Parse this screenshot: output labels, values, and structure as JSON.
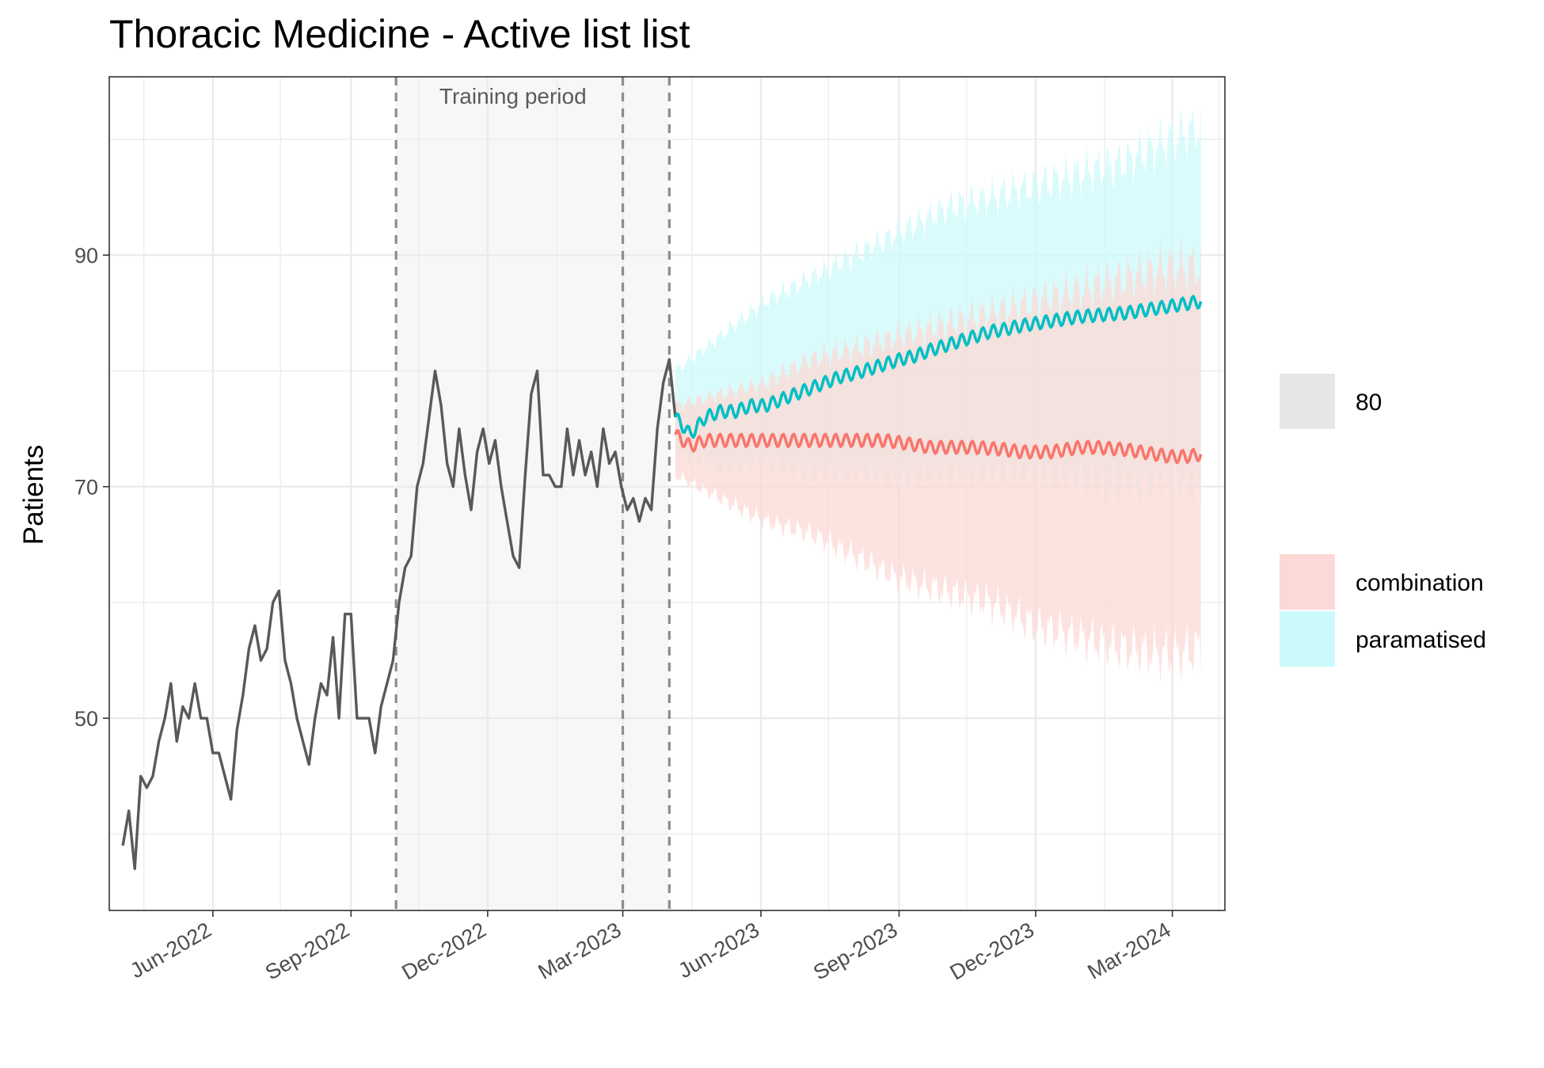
{
  "chart_data": {
    "type": "line",
    "title": "Thoracic Medicine - Active list list",
    "ylabel": "Patients",
    "xlabel": "",
    "xlim": [
      "2022-03-24",
      "2024-04-05"
    ],
    "ylim": [
      33.4,
      105.4
    ],
    "y_ticks": [
      50,
      70,
      90
    ],
    "x_ticks": [
      {
        "date": "2022-06-01",
        "label": "Jun-2022"
      },
      {
        "date": "2022-09-01",
        "label": "Sep-2022"
      },
      {
        "date": "2022-12-01",
        "label": "Dec-2022"
      },
      {
        "date": "2023-03-01",
        "label": "Mar-2023"
      },
      {
        "date": "2023-06-01",
        "label": "Jun-2023"
      },
      {
        "date": "2023-09-01",
        "label": "Sep-2023"
      },
      {
        "date": "2023-12-01",
        "label": "Dec-2023"
      },
      {
        "date": "2024-03-01",
        "label": "Mar-2024"
      }
    ],
    "grid": true,
    "legend_position": "right",
    "training_period": {
      "label": "Training period",
      "start": "2022-10-01",
      "end": "2023-04-01"
    },
    "vlines": [
      "2022-10-01",
      "2023-03-01",
      "2023-04-01"
    ],
    "legend": {
      "interval_title": "80",
      "entries": [
        "combination",
        "paramatised"
      ]
    },
    "colors": {
      "observed": "#595959",
      "combination": "#F8766D",
      "combination_band": "#FCD9D6",
      "paramatised": "#00BFC4",
      "paramatised_band": "#CCFAFB",
      "band_overlap": "#D9F2F1",
      "training_shade": "#F7F7F7",
      "vline": "#8C8C8C",
      "grid": "#EBEBEB",
      "legend_key_80": "#E6E6E6"
    },
    "series": [
      {
        "name": "observed",
        "x": [
          "2022-04-02",
          "2022-04-06",
          "2022-04-10",
          "2022-04-14",
          "2022-04-18",
          "2022-04-22",
          "2022-04-26",
          "2022-04-30",
          "2022-05-04",
          "2022-05-08",
          "2022-05-12",
          "2022-05-16",
          "2022-05-20",
          "2022-05-24",
          "2022-05-28",
          "2022-06-01",
          "2022-06-05",
          "2022-06-09",
          "2022-06-13",
          "2022-06-17",
          "2022-06-21",
          "2022-06-25",
          "2022-06-29",
          "2022-07-03",
          "2022-07-07",
          "2022-07-11",
          "2022-07-15",
          "2022-07-19",
          "2022-07-23",
          "2022-07-27",
          "2022-07-31",
          "2022-08-04",
          "2022-08-08",
          "2022-08-12",
          "2022-08-16",
          "2022-08-20",
          "2022-08-24",
          "2022-08-28",
          "2022-09-01",
          "2022-09-05",
          "2022-09-09",
          "2022-09-13",
          "2022-09-17",
          "2022-09-21",
          "2022-09-25",
          "2022-09-29",
          "2022-10-03",
          "2022-10-07",
          "2022-10-11",
          "2022-10-15",
          "2022-10-19",
          "2022-10-23",
          "2022-10-27",
          "2022-10-31",
          "2022-11-04",
          "2022-11-08",
          "2022-11-12",
          "2022-11-16",
          "2022-11-20",
          "2022-11-24",
          "2022-11-28",
          "2022-12-02",
          "2022-12-06",
          "2022-12-10",
          "2022-12-14",
          "2022-12-18",
          "2022-12-22",
          "2022-12-26",
          "2022-12-30",
          "2023-01-03",
          "2023-01-07",
          "2023-01-11",
          "2023-01-15",
          "2023-01-19",
          "2023-01-23",
          "2023-01-27",
          "2023-01-31",
          "2023-02-04",
          "2023-02-08",
          "2023-02-12",
          "2023-02-16",
          "2023-02-20",
          "2023-02-24",
          "2023-02-28",
          "2023-03-04",
          "2023-03-08",
          "2023-03-12",
          "2023-03-16",
          "2023-03-20",
          "2023-03-24",
          "2023-03-28",
          "2023-04-01",
          "2023-04-05"
        ],
        "y": [
          39,
          42,
          37,
          45,
          44,
          45,
          48,
          50,
          53,
          48,
          51,
          50,
          53,
          50,
          50,
          47,
          47,
          45,
          43,
          49,
          52,
          56,
          58,
          55,
          56,
          60,
          61,
          55,
          53,
          50,
          48,
          46,
          50,
          53,
          52,
          57,
          50,
          59,
          59,
          50,
          50,
          50,
          47,
          51,
          53,
          55,
          60,
          63,
          64,
          70,
          72,
          76,
          80,
          77,
          72,
          70,
          75,
          71,
          68,
          73,
          75,
          72,
          74,
          70,
          67,
          64,
          63,
          71,
          78,
          80,
          71,
          71,
          70,
          70,
          75,
          71,
          74,
          71,
          73,
          70,
          75,
          72,
          73,
          70,
          68,
          69,
          67,
          69,
          68,
          75,
          79,
          81,
          76
        ]
      },
      {
        "name": "paramatised",
        "x": [
          "2023-04-05",
          "2023-04-15",
          "2023-04-25",
          "2023-05-05",
          "2023-05-15",
          "2023-05-25",
          "2023-06-04",
          "2023-06-14",
          "2023-06-24",
          "2023-07-04",
          "2023-07-14",
          "2023-07-24",
          "2023-08-03",
          "2023-08-13",
          "2023-08-23",
          "2023-09-02",
          "2023-09-12",
          "2023-09-22",
          "2023-10-02",
          "2023-10-12",
          "2023-10-22",
          "2023-11-01",
          "2023-11-11",
          "2023-11-21",
          "2023-12-01",
          "2023-12-11",
          "2023-12-21",
          "2023-12-31",
          "2024-01-10",
          "2024-01-20",
          "2024-01-30",
          "2024-02-09",
          "2024-02-19",
          "2024-02-29",
          "2024-03-10",
          "2024-03-20"
        ],
        "y": [
          76,
          74.5,
          76,
          76.5,
          76.5,
          77,
          77,
          77.5,
          78,
          78.5,
          79,
          79.5,
          79.8,
          80.2,
          80.6,
          81,
          81.3,
          81.8,
          82.2,
          82.6,
          83,
          83.4,
          83.6,
          83.9,
          84.1,
          84.3,
          84.5,
          84.7,
          84.8,
          84.9,
          85,
          85.2,
          85.4,
          85.6,
          85.8,
          86
        ]
      },
      {
        "name": "combination",
        "x": [
          "2023-04-05",
          "2023-04-15",
          "2023-04-25",
          "2023-05-05",
          "2023-05-15",
          "2023-05-25",
          "2023-06-04",
          "2023-06-14",
          "2023-06-24",
          "2023-07-04",
          "2023-07-14",
          "2023-07-24",
          "2023-08-03",
          "2023-08-13",
          "2023-08-23",
          "2023-09-02",
          "2023-09-12",
          "2023-09-22",
          "2023-10-02",
          "2023-10-12",
          "2023-10-22",
          "2023-11-01",
          "2023-11-11",
          "2023-11-21",
          "2023-12-01",
          "2023-12-11",
          "2023-12-21",
          "2023-12-31",
          "2024-01-10",
          "2024-01-20",
          "2024-01-30",
          "2024-02-09",
          "2024-02-19",
          "2024-02-29",
          "2024-03-10",
          "2024-03-20"
        ],
        "y": [
          74.5,
          73.5,
          74,
          74,
          74,
          74,
          74,
          74,
          74,
          74,
          74,
          74,
          74,
          74,
          74,
          73.8,
          73.6,
          73.4,
          73.4,
          73.4,
          73.4,
          73.3,
          73.2,
          73,
          73,
          73,
          73.2,
          73.4,
          73.4,
          73.3,
          73.2,
          73,
          72.8,
          72.6,
          72.6,
          72.8
        ]
      }
    ],
    "bands": [
      {
        "name": "paramatised",
        "x": [
          "2023-04-05",
          "2023-05-05",
          "2023-06-04",
          "2023-07-04",
          "2023-08-03",
          "2023-09-02",
          "2023-10-02",
          "2023-11-01",
          "2023-12-01",
          "2023-12-31",
          "2024-01-30",
          "2024-02-29",
          "2024-03-20"
        ],
        "lower": [
          73,
          71.5,
          72,
          71,
          71,
          70.5,
          71,
          71,
          71,
          70.5,
          70,
          70.5,
          70
        ],
        "upper": [
          80,
          83,
          86,
          88,
          90,
          92,
          94,
          95,
          96,
          97,
          98,
          100,
          101
        ]
      },
      {
        "name": "combination",
        "x": [
          "2023-04-05",
          "2023-05-05",
          "2023-06-04",
          "2023-07-04",
          "2023-08-03",
          "2023-09-02",
          "2023-10-02",
          "2023-11-01",
          "2023-12-01",
          "2023-12-31",
          "2024-01-30",
          "2024-02-29",
          "2024-03-20"
        ],
        "lower": [
          71,
          69,
          67,
          66,
          64,
          62,
          61,
          60,
          58,
          57,
          56,
          55.5,
          56
        ],
        "upper": [
          77,
          78,
          79,
          81,
          82,
          83,
          84,
          85,
          86,
          87,
          88,
          89,
          89
        ]
      }
    ]
  }
}
